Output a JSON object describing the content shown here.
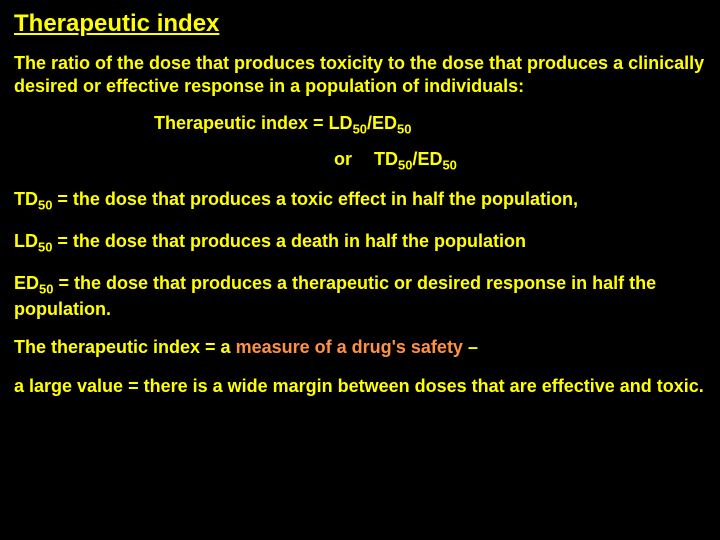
{
  "colors": {
    "background": "#000000",
    "text": "#ffff00",
    "accent": "#ff9242"
  },
  "typography": {
    "title_fontsize": 24,
    "body_fontsize": 18,
    "font_family": "Arial",
    "font_weight": "bold"
  },
  "title": "Therapeutic index",
  "intro": "The ratio of the dose that produces toxicity to the dose that produces a clinically desired or effective response in a population of individuals:",
  "formula": {
    "prefix": "Therapeutic index = ",
    "LD": "LD",
    "ED": "ED",
    "TD": "TD",
    "sub": "50",
    "slash": "/",
    "or": "or"
  },
  "defs": {
    "td_label": "TD",
    "td_text": " = the dose that produces a toxic effect in half the population,",
    "ld_label": "LD",
    "ld_text": " = the dose that produces a death in half the population",
    "ed_label": "ED",
    "ed_text": " = the dose that produces a therapeutic or desired response in half the population."
  },
  "safety": {
    "pre": "The therapeutic index = a ",
    "accent": "measure of a drug's safety",
    "post": " –"
  },
  "closing": "a large value = there is a wide margin between doses that are effective and toxic."
}
